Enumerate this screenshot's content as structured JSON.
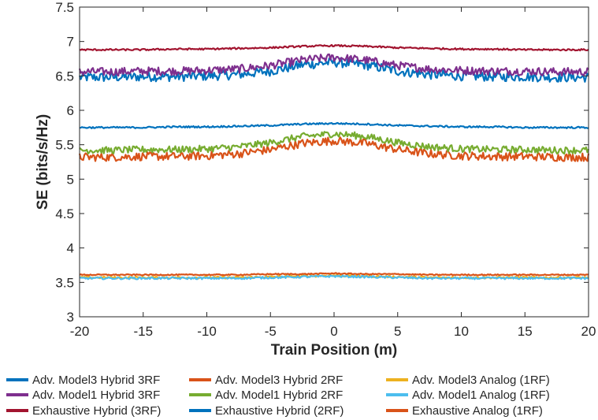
{
  "chart_data": {
    "type": "line",
    "title": "",
    "xlabel": "Train Position (m)",
    "ylabel": "SE (bits/s/Hz)",
    "xlim": [
      -20,
      20
    ],
    "ylim": [
      3,
      7.5
    ],
    "xticks": [
      -20,
      -15,
      -10,
      -5,
      0,
      5,
      10,
      15,
      20
    ],
    "yticks": [
      3,
      3.5,
      4,
      4.5,
      5,
      5.5,
      6,
      6.5,
      7,
      7.5
    ],
    "xtick_labels": [
      "-20",
      "-15",
      "-10",
      "-5",
      "0",
      "5",
      "10",
      "15",
      "20"
    ],
    "ytick_labels": [
      "3",
      "3.5",
      "4",
      "4.5",
      "5",
      "5.5",
      "6",
      "6.5",
      "7",
      "7.5"
    ],
    "grid": false,
    "legend_position": "bottom",
    "x": [
      -20,
      -17.5,
      -15,
      -12.5,
      -10,
      -7.5,
      -5,
      -2.5,
      0,
      2.5,
      5,
      7.5,
      10,
      12.5,
      15,
      17.5,
      20
    ],
    "series": [
      {
        "name": "Adv. Model3 Hybrid 3RF",
        "color": "#0072BD",
        "noise": 0.07,
        "values": [
          6.48,
          6.48,
          6.49,
          6.49,
          6.5,
          6.52,
          6.57,
          6.66,
          6.7,
          6.66,
          6.57,
          6.52,
          6.5,
          6.49,
          6.49,
          6.48,
          6.48
        ]
      },
      {
        "name": "Adv. Model3 Hybrid 2RF",
        "color": "#D95319",
        "noise": 0.06,
        "values": [
          5.32,
          5.32,
          5.33,
          5.33,
          5.34,
          5.37,
          5.43,
          5.52,
          5.56,
          5.52,
          5.43,
          5.37,
          5.34,
          5.33,
          5.33,
          5.32,
          5.32
        ]
      },
      {
        "name": "Adv. Model3 Analog (1RF)",
        "color": "#EDB120",
        "noise": 0.015,
        "values": [
          3.57,
          3.57,
          3.57,
          3.57,
          3.57,
          3.57,
          3.58,
          3.59,
          3.6,
          3.59,
          3.58,
          3.57,
          3.57,
          3.57,
          3.57,
          3.57,
          3.57
        ]
      },
      {
        "name": "Adv. Model1 Hybrid 3RF",
        "color": "#7E2F8E",
        "noise": 0.06,
        "values": [
          6.56,
          6.56,
          6.57,
          6.57,
          6.58,
          6.6,
          6.65,
          6.73,
          6.77,
          6.73,
          6.65,
          6.6,
          6.58,
          6.57,
          6.57,
          6.56,
          6.56
        ]
      },
      {
        "name": "Adv. Model1 Hybrid 2RF",
        "color": "#77AC30",
        "noise": 0.05,
        "values": [
          5.42,
          5.42,
          5.43,
          5.43,
          5.44,
          5.47,
          5.53,
          5.62,
          5.66,
          5.62,
          5.53,
          5.47,
          5.44,
          5.43,
          5.43,
          5.42,
          5.42
        ]
      },
      {
        "name": "Adv. Model1 Analog (1RF)",
        "color": "#4DBEEE",
        "noise": 0.015,
        "values": [
          3.56,
          3.56,
          3.56,
          3.56,
          3.56,
          3.56,
          3.57,
          3.58,
          3.59,
          3.58,
          3.57,
          3.56,
          3.56,
          3.56,
          3.56,
          3.56,
          3.56
        ]
      },
      {
        "name": "Exhaustive Hybrid (3RF)",
        "color": "#A2142F",
        "noise": 0.012,
        "values": [
          6.88,
          6.88,
          6.88,
          6.89,
          6.89,
          6.9,
          6.91,
          6.93,
          6.94,
          6.93,
          6.91,
          6.9,
          6.89,
          6.89,
          6.88,
          6.88,
          6.88
        ]
      },
      {
        "name": "Exhaustive Hybrid (2RF)",
        "color": "#0072BD",
        "noise": 0.012,
        "values": [
          5.75,
          5.75,
          5.75,
          5.76,
          5.76,
          5.77,
          5.78,
          5.8,
          5.81,
          5.8,
          5.78,
          5.77,
          5.76,
          5.76,
          5.75,
          5.75,
          5.75
        ]
      },
      {
        "name": "Exhaustive Analog (1RF)",
        "color": "#D95319",
        "noise": 0.008,
        "values": [
          3.61,
          3.61,
          3.61,
          3.61,
          3.61,
          3.61,
          3.62,
          3.62,
          3.63,
          3.62,
          3.62,
          3.61,
          3.61,
          3.61,
          3.61,
          3.61,
          3.61
        ]
      }
    ]
  }
}
